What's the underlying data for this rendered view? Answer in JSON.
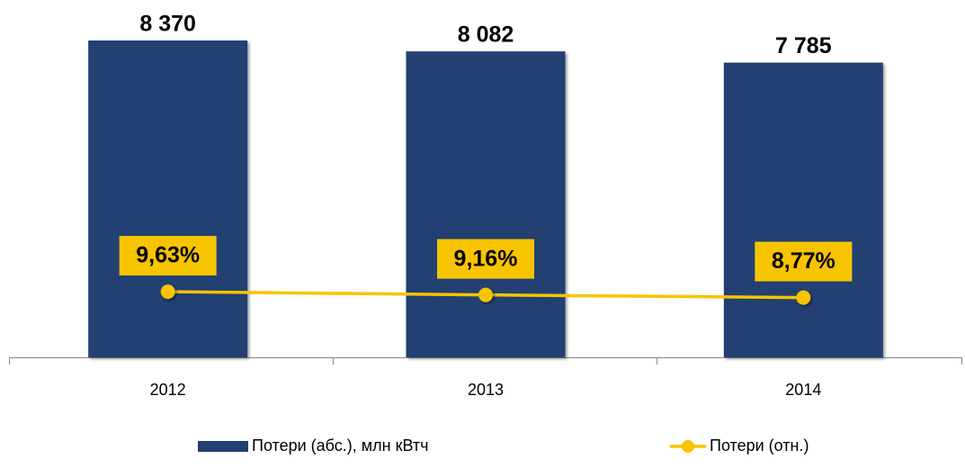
{
  "chart_data": {
    "type": "bar_line",
    "categories": [
      "2012",
      "2013",
      "2014"
    ],
    "series": [
      {
        "name": "Потери (абс.), млн кВтч",
        "type": "bar",
        "color": "#213f72",
        "values": [
          8370,
          8082,
          7785
        ],
        "value_labels": [
          "8 370",
          "8 082",
          "7 785"
        ]
      },
      {
        "name": "Потери (отн.)",
        "type": "line",
        "axis": "y2",
        "color": "#f7c400",
        "values": [
          9.63,
          9.16,
          8.77
        ],
        "value_labels": [
          "9,63%",
          "9,16%",
          "8,77%"
        ]
      }
    ],
    "ylim": [
      0,
      9000
    ],
    "y2lim": [
      0,
      50
    ]
  }
}
